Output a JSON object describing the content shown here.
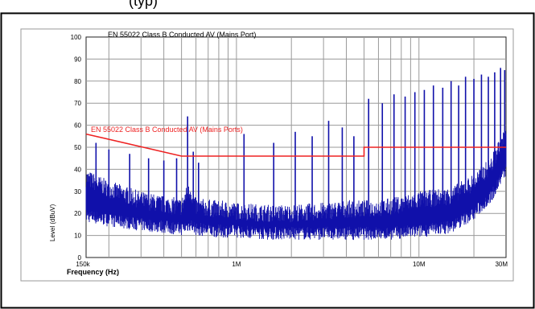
{
  "top_caption": "(typ)",
  "chart_data": {
    "type": "line",
    "title": "EN 55022 Class B Conducted AV (Mains Port)",
    "xlabel": "Frequency (Hz)",
    "ylabel": "Level (dBuV)",
    "x_scale": "log",
    "xlim": [
      150000,
      30000000
    ],
    "ylim": [
      0,
      100
    ],
    "x_ticks": [
      {
        "value": 150000,
        "label": "150k"
      },
      {
        "value": 1000000,
        "label": "1M"
      },
      {
        "value": 10000000,
        "label": "10M"
      },
      {
        "value": 30000000,
        "label": "30M"
      }
    ],
    "y_ticks": [
      0,
      10,
      20,
      30,
      40,
      50,
      60,
      70,
      80,
      90,
      100
    ],
    "grid": true,
    "series": [
      {
        "name": "EN 55022 Class B Conducted AV (Mains Ports)",
        "color": "#ee2222",
        "x": [
          150000,
          500000,
          5000000,
          5000000,
          30000000
        ],
        "y": [
          56,
          46,
          46,
          50,
          50
        ]
      },
      {
        "color": "#1010aa",
        "x": [
          150000,
          200000,
          300000,
          400000,
          500000,
          530000,
          560000,
          600000,
          800000,
          1000000,
          1500000,
          2000000,
          3000000,
          4000000,
          5000000,
          7000000,
          10000000,
          15000000,
          20000000,
          25000000,
          28000000,
          30000000
        ],
        "y": [
          36,
          31,
          26,
          24,
          23,
          28,
          30,
          23,
          22,
          21,
          20,
          20,
          21,
          22,
          22,
          23,
          26,
          28,
          34,
          42,
          52,
          55
        ],
        "noise_floor": [
          19,
          17,
          15,
          14,
          13,
          14,
          15,
          13,
          12,
          12,
          11,
          11,
          11,
          11,
          11,
          11,
          12,
          14,
          20,
          28,
          36,
          40
        ],
        "peaks": [
          {
            "x": 170000,
            "y": 52
          },
          {
            "x": 200000,
            "y": 49
          },
          {
            "x": 260000,
            "y": 47
          },
          {
            "x": 330000,
            "y": 45
          },
          {
            "x": 400000,
            "y": 44
          },
          {
            "x": 470000,
            "y": 45
          },
          {
            "x": 540000,
            "y": 64
          },
          {
            "x": 580000,
            "y": 48
          },
          {
            "x": 620000,
            "y": 43
          },
          {
            "x": 1100000,
            "y": 56
          },
          {
            "x": 1600000,
            "y": 52
          },
          {
            "x": 2100000,
            "y": 57
          },
          {
            "x": 2600000,
            "y": 55
          },
          {
            "x": 3200000,
            "y": 62
          },
          {
            "x": 3800000,
            "y": 59
          },
          {
            "x": 4400000,
            "y": 55
          },
          {
            "x": 5300000,
            "y": 72
          },
          {
            "x": 6300000,
            "y": 70
          },
          {
            "x": 7300000,
            "y": 74
          },
          {
            "x": 8400000,
            "y": 73
          },
          {
            "x": 9500000,
            "y": 75
          },
          {
            "x": 10700000,
            "y": 76
          },
          {
            "x": 12000000,
            "y": 78
          },
          {
            "x": 13500000,
            "y": 77
          },
          {
            "x": 15000000,
            "y": 80
          },
          {
            "x": 16500000,
            "y": 78
          },
          {
            "x": 18000000,
            "y": 82
          },
          {
            "x": 20000000,
            "y": 81
          },
          {
            "x": 22000000,
            "y": 83
          },
          {
            "x": 24000000,
            "y": 82
          },
          {
            "x": 26000000,
            "y": 84
          },
          {
            "x": 28000000,
            "y": 86
          },
          {
            "x": 29500000,
            "y": 85
          }
        ]
      }
    ]
  }
}
